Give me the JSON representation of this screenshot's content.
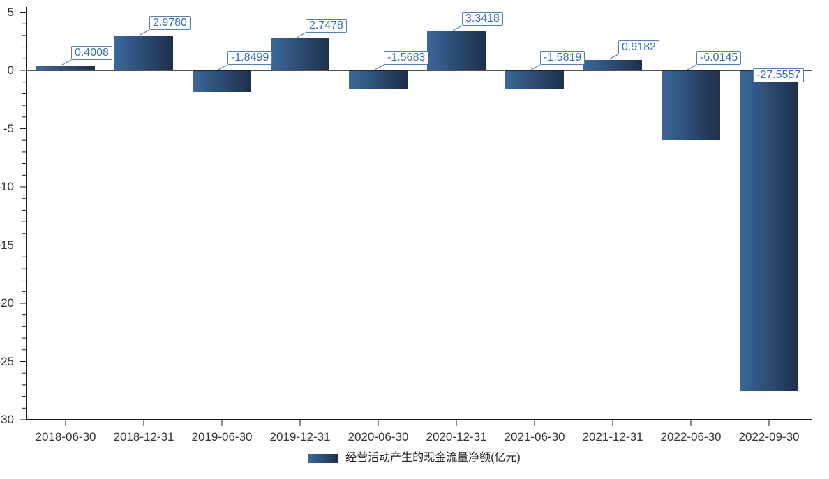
{
  "chart": {
    "y_axis": {
      "tick_labels": [
        "5",
        "0",
        "-5",
        "-10",
        "-15",
        "-20",
        "-25",
        "-30"
      ]
    },
    "x_axis": {
      "tick_labels": [
        "2018-06-30",
        "2018-12-31",
        "2019-06-30",
        "2019-12-31",
        "2020-06-30",
        "2020-12-31",
        "2021-06-30",
        "2021-12-31",
        "2022-06-30",
        "2022-09-30"
      ]
    }
  },
  "chart_data": {
    "type": "bar",
    "title": "",
    "categories": [
      "2018-06-30",
      "2018-12-31",
      "2019-06-30",
      "2019-12-31",
      "2020-06-30",
      "2020-12-31",
      "2021-06-30",
      "2021-12-31",
      "2022-06-30",
      "2022-09-30"
    ],
    "values": [
      0.4008,
      2.978,
      -1.8499,
      2.7478,
      -1.5683,
      3.3418,
      -1.5819,
      0.9182,
      -6.0145,
      -27.5557
    ],
    "value_labels": [
      "0.4008",
      "2.9780",
      "-1.8499",
      "2.7478",
      "-1.5683",
      "3.3418",
      "-1.5819",
      "0.9182",
      "-6.0145",
      "-27.5557"
    ],
    "value_label_placement": [
      "above",
      "above",
      "above",
      "above",
      "above",
      "above",
      "above",
      "above",
      "above",
      "below"
    ],
    "series_name": "经营活动产生的现金流量净额(亿元)",
    "xlabel": "",
    "ylabel": "",
    "ylim": [
      -30,
      5
    ],
    "y_ticks": [
      5,
      0,
      -5,
      -10,
      -15,
      -20,
      -25,
      -30
    ],
    "minor_tick_step": 1,
    "grid": false,
    "legend_position": "bottom",
    "colors": {
      "bar_gradient_left": "#3a689a",
      "bar_gradient_right": "#1e2f4a",
      "value_label_text": "#3a6dae",
      "value_label_border": "#5580b5",
      "axis": "#1a1a1a",
      "tick_text": "#333333"
    }
  }
}
